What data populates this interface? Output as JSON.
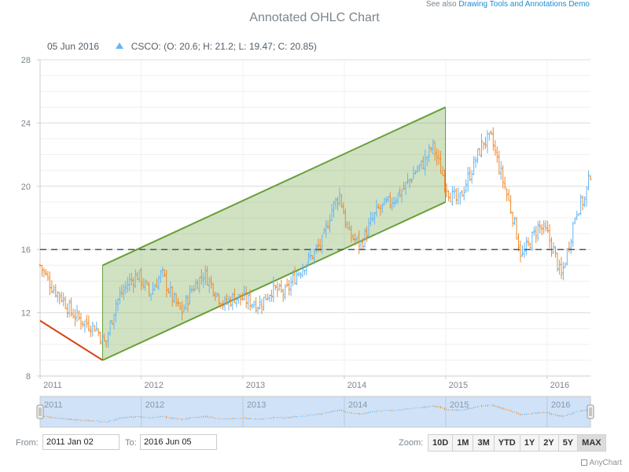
{
  "see_also": {
    "prefix": "See also ",
    "link": "Drawing Tools and Annotations Demo"
  },
  "chart_data": {
    "type": "ohlc",
    "title": "Annotated OHLC Chart",
    "legend": {
      "date": "05 Jun 2016",
      "series": "CSCO",
      "values": "(O: 20.6; H: 21.2; L: 19.47; C: 20.85)"
    },
    "series_name": "CSCO",
    "up_color": "#64b5f6",
    "down_color": "#ef8a2b",
    "x_range": [
      "2011-01-02",
      "2016-06-05"
    ],
    "x_ticks": [
      {
        "label": "2011",
        "date": "2011-01-01"
      },
      {
        "label": "2012",
        "date": "2012-01-01"
      },
      {
        "label": "2013",
        "date": "2013-01-01"
      },
      {
        "label": "2014",
        "date": "2014-01-01"
      },
      {
        "label": "2015",
        "date": "2015-01-01"
      },
      {
        "label": "2016",
        "date": "2016-01-01"
      }
    ],
    "ylim": [
      8,
      28
    ],
    "y_ticks": [
      8,
      12,
      16,
      20,
      24,
      28
    ],
    "close_anchors": [
      [
        "2011-01-02",
        15.0
      ],
      [
        "2011-02-15",
        13.6
      ],
      [
        "2011-03-20",
        13.0
      ],
      [
        "2011-04-25",
        12.0
      ],
      [
        "2011-06-10",
        11.4
      ],
      [
        "2011-07-20",
        11.1
      ],
      [
        "2011-08-25",
        10.0
      ],
      [
        "2011-10-01",
        12.6
      ],
      [
        "2011-11-15",
        13.9
      ],
      [
        "2011-12-20",
        14.4
      ],
      [
        "2012-02-01",
        13.2
      ],
      [
        "2012-03-15",
        14.5
      ],
      [
        "2012-04-20",
        13.0
      ],
      [
        "2012-05-25",
        12.0
      ],
      [
        "2012-07-01",
        13.5
      ],
      [
        "2012-08-15",
        14.5
      ],
      [
        "2012-09-20",
        13.5
      ],
      [
        "2012-10-25",
        12.5
      ],
      [
        "2012-12-01",
        13.0
      ],
      [
        "2013-01-15",
        12.8
      ],
      [
        "2013-03-01",
        12.5
      ],
      [
        "2013-04-15",
        13.5
      ],
      [
        "2013-06-01",
        13.2
      ],
      [
        "2013-07-15",
        14.5
      ],
      [
        "2013-09-01",
        15.5
      ],
      [
        "2013-10-15",
        16.5
      ],
      [
        "2013-11-15",
        18.5
      ],
      [
        "2013-12-15",
        19.5
      ],
      [
        "2014-01-15",
        17.0
      ],
      [
        "2014-03-01",
        16.3
      ],
      [
        "2014-04-01",
        17.5
      ],
      [
        "2014-05-01",
        18.5
      ],
      [
        "2014-06-15",
        19.0
      ],
      [
        "2014-08-01",
        19.8
      ],
      [
        "2014-09-15",
        21.0
      ],
      [
        "2014-10-15",
        21.5
      ],
      [
        "2014-11-15",
        22.6
      ],
      [
        "2014-12-15",
        21.0
      ],
      [
        "2015-01-15",
        19.5
      ],
      [
        "2015-02-15",
        19.0
      ],
      [
        "2015-03-15",
        20.2
      ],
      [
        "2015-04-15",
        21.5
      ],
      [
        "2015-05-15",
        22.8
      ],
      [
        "2015-06-15",
        23.0
      ],
      [
        "2015-07-15",
        21.0
      ],
      [
        "2015-08-01",
        20.0
      ],
      [
        "2015-09-01",
        18.0
      ],
      [
        "2015-10-01",
        15.5
      ],
      [
        "2015-11-01",
        16.5
      ],
      [
        "2015-12-01",
        17.5
      ],
      [
        "2016-01-01",
        17.0
      ],
      [
        "2016-02-01",
        15.5
      ],
      [
        "2016-02-20",
        14.2
      ],
      [
        "2016-03-15",
        16.0
      ],
      [
        "2016-04-15",
        18.5
      ],
      [
        "2016-05-15",
        19.2
      ],
      [
        "2016-06-05",
        20.85
      ]
    ],
    "annotations": [
      {
        "type": "trend-line",
        "points": [
          [
            "2011-01-02",
            11.5
          ],
          [
            "2011-08-15",
            9.0
          ]
        ],
        "color": "#d84315"
      },
      {
        "type": "horizontal-line",
        "value": 16,
        "color": "#455a64",
        "dash": true
      },
      {
        "type": "channel",
        "start": [
          "2011-08-15",
          9.0
        ],
        "end": [
          "2014-12-31",
          19.0
        ],
        "width": 6,
        "color": "#689f38"
      }
    ]
  },
  "navigator": {
    "labels": [
      "2011",
      "2012",
      "2013",
      "2014",
      "2015",
      "2016"
    ]
  },
  "controls": {
    "from_label": "From:",
    "from_value": "2011 Jan 02",
    "to_label": "To:",
    "to_value": "2016 Jun 05",
    "zoom_label": "Zoom:",
    "zoom_buttons": [
      "10D",
      "1M",
      "3M",
      "YTD",
      "1Y",
      "2Y",
      "5Y",
      "MAX"
    ],
    "active_zoom": "MAX"
  },
  "credits": "AnyChart"
}
